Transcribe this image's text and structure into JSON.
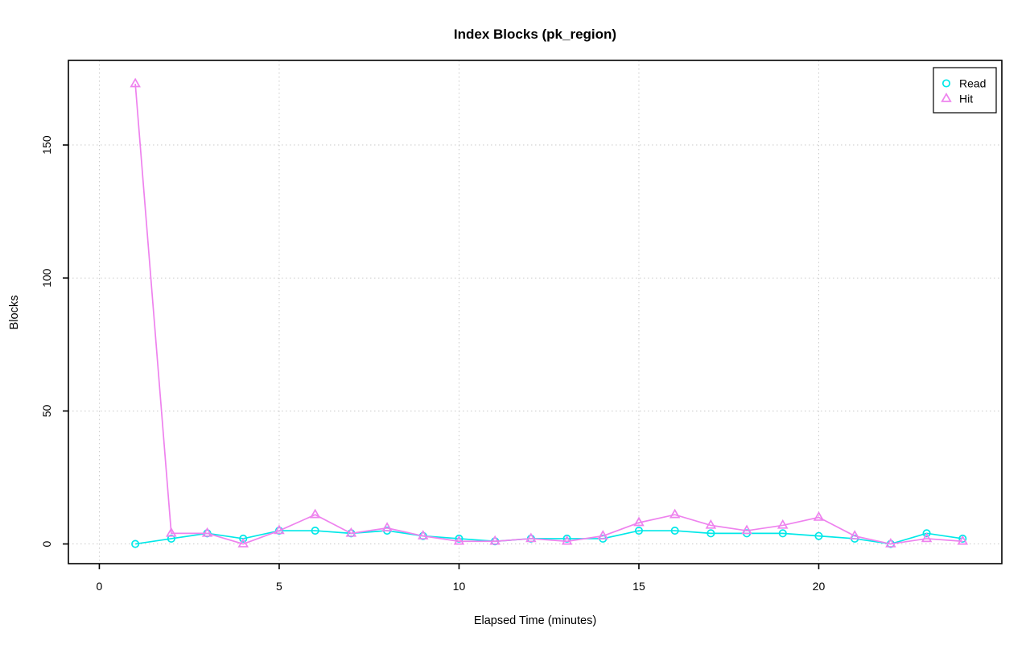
{
  "page": {
    "background": "#ffffff"
  },
  "chart_data": {
    "type": "line",
    "title": "Index Blocks (pk_region)",
    "xlabel": "Elapsed Time (minutes)",
    "ylabel": "Blocks",
    "x": [
      1,
      2,
      3,
      4,
      5,
      6,
      7,
      8,
      9,
      10,
      11,
      12,
      13,
      14,
      15,
      16,
      17,
      18,
      19,
      20,
      21,
      22,
      23,
      24
    ],
    "series": [
      {
        "name": "Read",
        "marker": "circle",
        "color": "#00e8e8",
        "values": [
          0,
          2,
          4,
          2,
          5,
          5,
          4,
          5,
          3,
          2,
          1,
          2,
          2,
          2,
          5,
          5,
          4,
          4,
          4,
          3,
          2,
          0,
          4,
          2
        ]
      },
      {
        "name": "Hit",
        "marker": "triangle",
        "color": "#ee82ee",
        "values": [
          173,
          4,
          4,
          0,
          5,
          11,
          4,
          6,
          3,
          1,
          1,
          2,
          1,
          3,
          8,
          11,
          7,
          5,
          7,
          10,
          3,
          0,
          2,
          1
        ]
      }
    ],
    "xticks": [
      0,
      5,
      10,
      15,
      20
    ],
    "yticks": [
      0,
      50,
      100,
      150
    ],
    "xlim": [
      -0.86,
      25.09
    ],
    "ylim": [
      -7.4,
      181.8
    ],
    "grid": {
      "style": "dotted",
      "color": "#c9c9c9",
      "on": true
    },
    "frame_color": "#000000",
    "legend": {
      "position": "top-right",
      "entries": [
        "Read",
        "Hit"
      ]
    }
  }
}
